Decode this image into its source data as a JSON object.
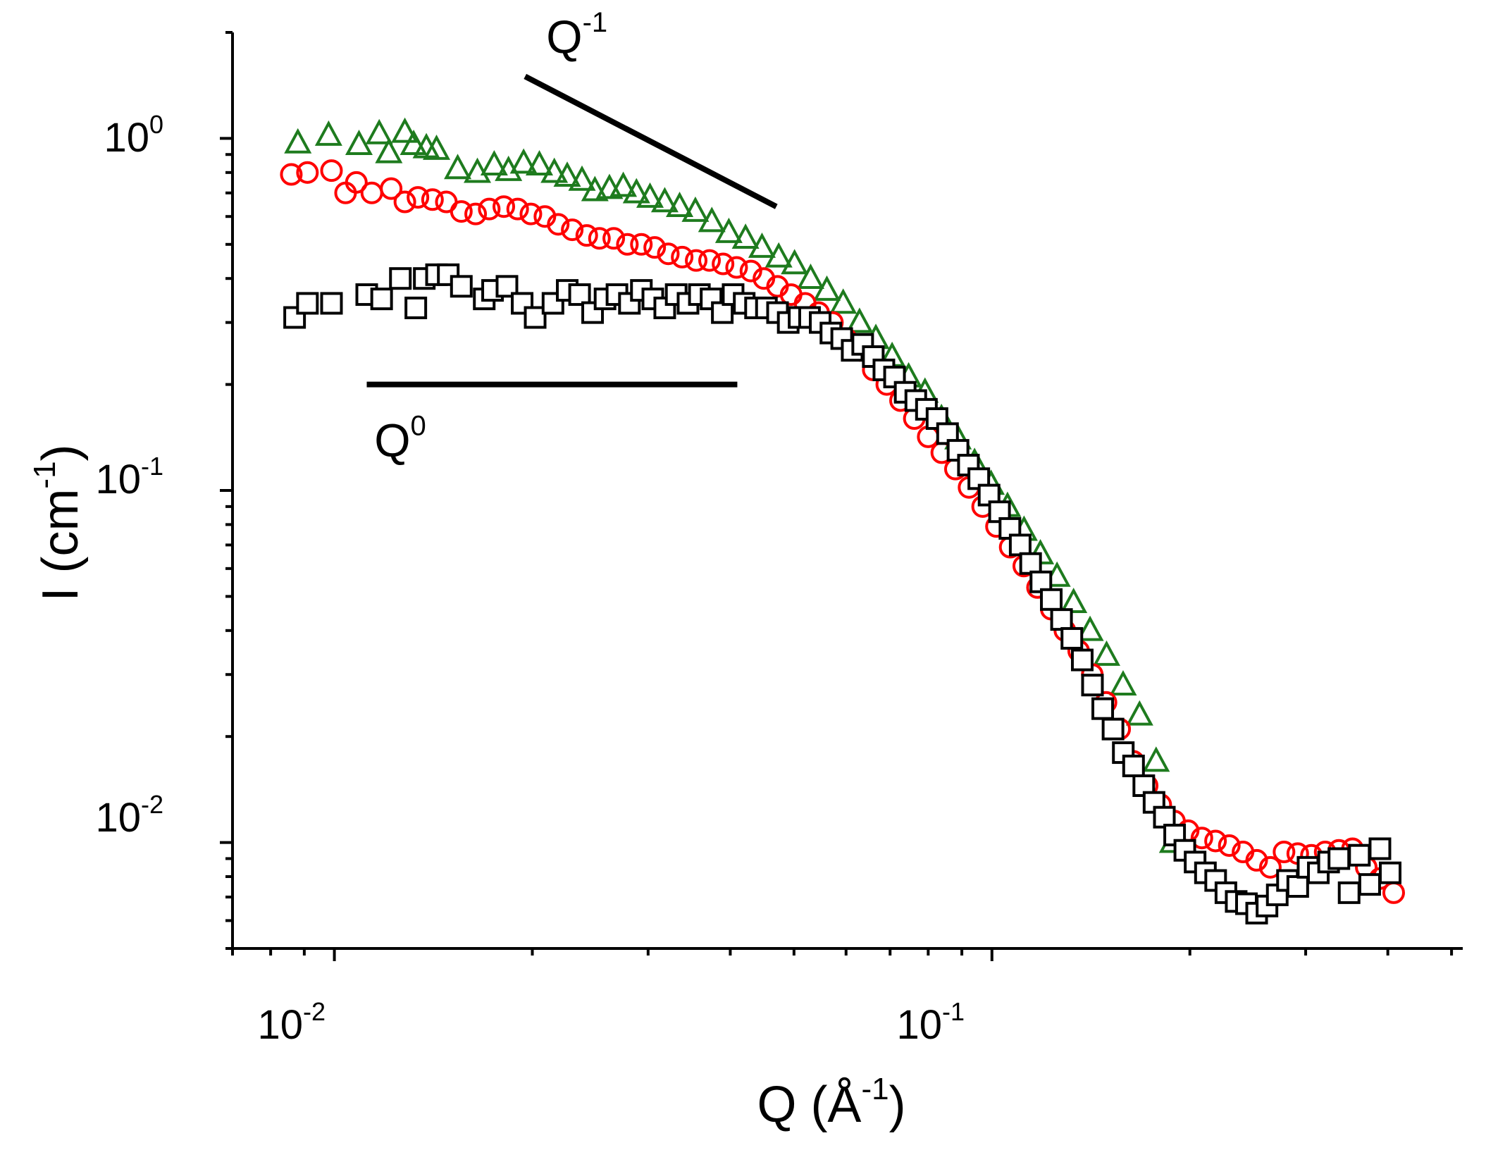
{
  "chart_data": {
    "type": "scatter",
    "xscale": "log",
    "yscale": "log",
    "xlim": [
      0.007,
      0.52
    ],
    "ylim": [
      0.005,
      2.0
    ],
    "xlabel": {
      "base": "Q (Å",
      "exp": "-1",
      "close": ")"
    },
    "ylabel": {
      "base": "I (cm",
      "exp": "-1",
      "close": ")"
    },
    "x_ticks": [
      {
        "base": "10",
        "exp": "-2",
        "value": 0.01
      },
      {
        "base": "10",
        "exp": "-1",
        "value": 0.1
      }
    ],
    "y_ticks": [
      {
        "base": "10",
        "exp": "0",
        "value": 1.0
      },
      {
        "base": "10",
        "exp": "-1",
        "value": 0.1
      },
      {
        "base": "10",
        "exp": "-2",
        "value": 0.01
      }
    ],
    "annotations": [
      {
        "base": "Q",
        "exp": "-1",
        "line": {
          "x": [
            0.0195,
            0.047
          ],
          "y": [
            1.5,
            0.64
          ]
        },
        "label_at": {
          "x": 0.021,
          "y": 1.75
        }
      },
      {
        "base": "Q",
        "exp": "0",
        "line": {
          "x": [
            0.0112,
            0.041
          ],
          "y": [
            0.2,
            0.2
          ]
        },
        "label_at": {
          "x": 0.0115,
          "y": 0.125
        }
      }
    ],
    "series": [
      {
        "name": "triangles",
        "marker": "triangle",
        "color": "#1e7b1e",
        "x": [
          0.0088,
          0.0098,
          0.0109,
          0.0117,
          0.0121,
          0.0128,
          0.0132,
          0.0138,
          0.0143,
          0.0154,
          0.0165,
          0.0175,
          0.0184,
          0.0194,
          0.0205,
          0.0216,
          0.0226,
          0.0238,
          0.0249,
          0.0262,
          0.0275,
          0.0288,
          0.0302,
          0.0318,
          0.0335,
          0.0354,
          0.0375,
          0.0398,
          0.0422,
          0.0447,
          0.0474,
          0.0501,
          0.053,
          0.0561,
          0.0594,
          0.0629,
          0.0666,
          0.0705,
          0.0747,
          0.0791,
          0.0838,
          0.0888,
          0.0941,
          0.0997,
          0.1056,
          0.1119,
          0.1185,
          0.1256,
          0.1331,
          0.141,
          0.1494,
          0.1583,
          0.1677,
          0.1777,
          0.1883
        ],
        "y": [
          0.97,
          1.02,
          0.96,
          1.03,
          0.91,
          1.04,
          0.96,
          0.94,
          0.93,
          0.82,
          0.8,
          0.84,
          0.81,
          0.85,
          0.84,
          0.8,
          0.78,
          0.76,
          0.71,
          0.72,
          0.73,
          0.7,
          0.68,
          0.66,
          0.64,
          0.62,
          0.58,
          0.54,
          0.52,
          0.49,
          0.46,
          0.44,
          0.4,
          0.37,
          0.34,
          0.3,
          0.27,
          0.24,
          0.21,
          0.19,
          0.16,
          0.14,
          0.12,
          0.104,
          0.09,
          0.077,
          0.066,
          0.057,
          0.048,
          0.04,
          0.034,
          0.028,
          0.023,
          0.017,
          0.01
        ]
      },
      {
        "name": "circles",
        "marker": "circle",
        "color": "#ff0000",
        "x": [
          0.0086,
          0.0091,
          0.0099,
          0.0104,
          0.0108,
          0.0114,
          0.0122,
          0.0128,
          0.0134,
          0.0141,
          0.0148,
          0.0156,
          0.0164,
          0.0172,
          0.0181,
          0.019,
          0.0199,
          0.0209,
          0.0219,
          0.023,
          0.0242,
          0.0253,
          0.0266,
          0.0279,
          0.0293,
          0.0307,
          0.0322,
          0.0338,
          0.0355,
          0.0372,
          0.039,
          0.0409,
          0.043,
          0.045,
          0.0472,
          0.0495,
          0.052,
          0.0545,
          0.0572,
          0.06,
          0.063,
          0.066,
          0.0692,
          0.0726,
          0.0762,
          0.08,
          0.0839,
          0.088,
          0.0923,
          0.0968,
          0.1016,
          0.1066,
          0.1118,
          0.1173,
          0.1231,
          0.1291,
          0.1355,
          0.1421,
          0.1491,
          0.1564,
          0.1641,
          0.1722,
          0.1806,
          0.1895,
          0.1988,
          0.2086,
          0.2188,
          0.2296,
          0.2409,
          0.2527,
          0.2651,
          0.2781,
          0.2918,
          0.3061,
          0.3212,
          0.337,
          0.3535,
          0.3709,
          0.3892,
          0.4083
        ],
        "y": [
          0.79,
          0.8,
          0.81,
          0.7,
          0.75,
          0.7,
          0.72,
          0.66,
          0.68,
          0.67,
          0.66,
          0.62,
          0.61,
          0.63,
          0.64,
          0.63,
          0.61,
          0.6,
          0.57,
          0.55,
          0.53,
          0.52,
          0.52,
          0.5,
          0.5,
          0.49,
          0.47,
          0.46,
          0.45,
          0.45,
          0.44,
          0.43,
          0.42,
          0.4,
          0.38,
          0.36,
          0.34,
          0.32,
          0.3,
          0.27,
          0.25,
          0.22,
          0.2,
          0.18,
          0.16,
          0.142,
          0.128,
          0.115,
          0.102,
          0.09,
          0.079,
          0.069,
          0.061,
          0.053,
          0.046,
          0.04,
          0.035,
          0.03,
          0.025,
          0.021,
          0.017,
          0.0145,
          0.0128,
          0.0115,
          0.0108,
          0.0103,
          0.0101,
          0.0098,
          0.0094,
          0.0089,
          0.0085,
          0.0094,
          0.0093,
          0.0092,
          0.0094,
          0.0095,
          0.0096,
          0.0085,
          0.0079,
          0.0072
        ]
      },
      {
        "name": "squares",
        "marker": "square",
        "color": "#000000",
        "x": [
          0.0087,
          0.0091,
          0.0099,
          0.0112,
          0.0118,
          0.0126,
          0.0133,
          0.0137,
          0.0143,
          0.0149,
          0.0156,
          0.0169,
          0.0174,
          0.0183,
          0.0193,
          0.0202,
          0.0215,
          0.0226,
          0.0236,
          0.0247,
          0.0258,
          0.0269,
          0.0281,
          0.0293,
          0.0305,
          0.0318,
          0.0331,
          0.0345,
          0.0359,
          0.0374,
          0.0389,
          0.0404,
          0.042,
          0.0437,
          0.0454,
          0.0472,
          0.049,
          0.0509,
          0.0528,
          0.0548,
          0.0569,
          0.0591,
          0.0613,
          0.0636,
          0.066,
          0.0685,
          0.0711,
          0.0738,
          0.0766,
          0.0795,
          0.0825,
          0.0856,
          0.0888,
          0.0921,
          0.0955,
          0.099,
          0.1027,
          0.1065,
          0.1104,
          0.1145,
          0.1187,
          0.1231,
          0.1276,
          0.1323,
          0.1372,
          0.1422,
          0.1474,
          0.1528,
          0.1584,
          0.1642,
          0.1702,
          0.1764,
          0.1829,
          0.1896,
          0.1965,
          0.2037,
          0.2112,
          0.2189,
          0.2269,
          0.2352,
          0.2438,
          0.2527,
          0.262,
          0.2716,
          0.2815,
          0.2918,
          0.3025,
          0.3136,
          0.3251,
          0.337,
          0.3493,
          0.3621,
          0.3754,
          0.3891,
          0.4033
        ],
        "y": [
          0.31,
          0.34,
          0.34,
          0.36,
          0.35,
          0.4,
          0.33,
          0.4,
          0.41,
          0.41,
          0.38,
          0.35,
          0.37,
          0.38,
          0.34,
          0.31,
          0.34,
          0.37,
          0.36,
          0.32,
          0.35,
          0.36,
          0.34,
          0.37,
          0.35,
          0.33,
          0.36,
          0.34,
          0.36,
          0.35,
          0.32,
          0.36,
          0.34,
          0.33,
          0.33,
          0.32,
          0.3,
          0.31,
          0.31,
          0.3,
          0.28,
          0.27,
          0.25,
          0.26,
          0.24,
          0.22,
          0.21,
          0.19,
          0.18,
          0.17,
          0.16,
          0.145,
          0.13,
          0.118,
          0.108,
          0.097,
          0.087,
          0.078,
          0.07,
          0.062,
          0.055,
          0.049,
          0.043,
          0.038,
          0.033,
          0.028,
          0.024,
          0.021,
          0.018,
          0.0165,
          0.0145,
          0.013,
          0.0118,
          0.0105,
          0.0095,
          0.0088,
          0.0082,
          0.0078,
          0.0072,
          0.0068,
          0.0067,
          0.0063,
          0.0066,
          0.0071,
          0.0078,
          0.0075,
          0.0085,
          0.0082,
          0.0088,
          0.009,
          0.0072,
          0.0092,
          0.0076,
          0.0096,
          0.0082
        ]
      }
    ]
  }
}
